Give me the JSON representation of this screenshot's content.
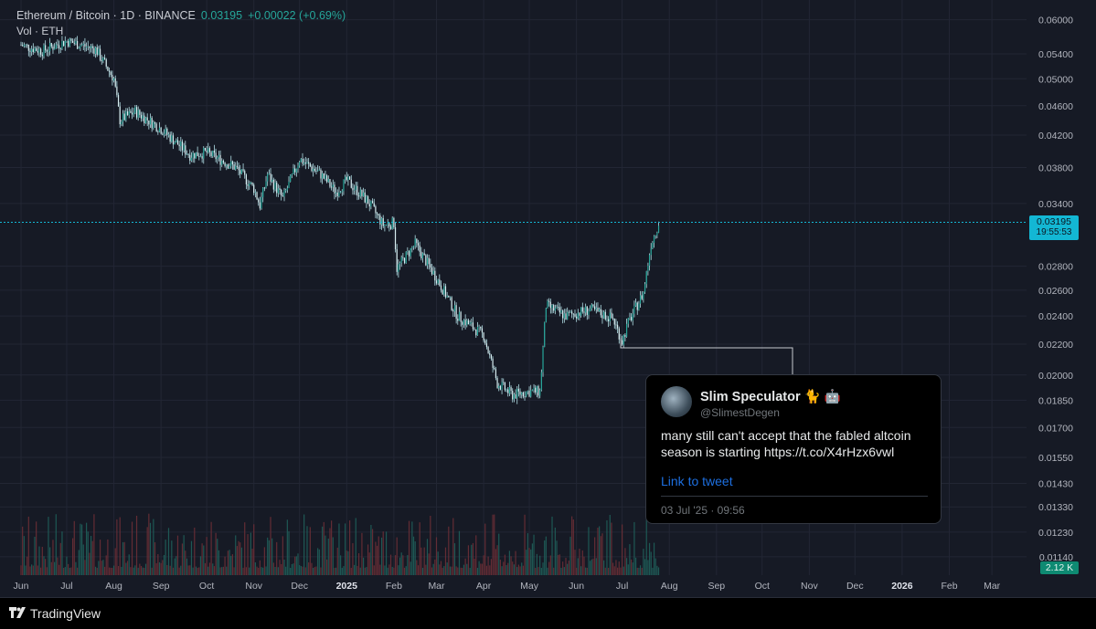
{
  "header": {
    "symbol": "Ethereum / Bitcoin · 1D · BINANCE",
    "price": "0.03195",
    "change": "+0.00022 (+0.69%)",
    "volume_label": "Vol · ETH"
  },
  "price_tag": {
    "price": "0.03195",
    "countdown": "19:55:53"
  },
  "volume_tag": "2.12 K",
  "footer": {
    "brand": "TradingView"
  },
  "tweet": {
    "name": "Slim Speculator 🐈 🤖",
    "handle": "@SlimestDegen",
    "text": "many still can't accept that the fabled altcoin season is starting https://t.co/X4rHzx6vwl",
    "link": "Link to tweet",
    "date": "03 Jul '25 · 09:56"
  },
  "colors": {
    "background": "#161a25",
    "up": "#26a69a",
    "candle": "#b2dfe6",
    "down": "#ef5350",
    "price_line": "#13b7d4"
  },
  "chart_data": {
    "type": "line",
    "title": "Ethereum / Bitcoin · 1D · BINANCE",
    "y_scale": "log",
    "y_ticks": [
      "0.06000",
      "0.05400",
      "0.05000",
      "0.04600",
      "0.04200",
      "0.03800",
      "0.03400",
      "0.02800",
      "0.02600",
      "0.02400",
      "0.02200",
      "0.02000",
      "0.01850",
      "0.01700",
      "0.01550",
      "0.01430",
      "0.01330",
      "0.01230",
      "0.01140"
    ],
    "x_ticks": [
      "Jun",
      "Jul",
      "Aug",
      "Sep",
      "Oct",
      "Nov",
      "Dec",
      "2025",
      "Feb",
      "Mar",
      "Apr",
      "May",
      "Jun",
      "Jul",
      "Aug",
      "Sep",
      "Oct",
      "Nov",
      "Dec",
      "2026",
      "Feb",
      "Mar"
    ],
    "bold_x_ticks": [
      "2025",
      "2026"
    ],
    "series": [
      {
        "x": [
          "2024-06-01",
          "2024-06-15",
          "2024-07-01",
          "2024-07-20",
          "2024-08-01",
          "2024-08-05",
          "2024-08-15",
          "2024-09-01",
          "2024-09-20",
          "2024-10-01",
          "2024-10-20",
          "2024-11-01",
          "2024-11-05",
          "2024-11-10",
          "2024-11-20",
          "2024-12-01",
          "2024-12-15",
          "2024-12-25",
          "2025-01-01",
          "2025-01-15",
          "2025-01-25",
          "2025-02-01",
          "2025-02-03",
          "2025-02-15",
          "2025-03-01",
          "2025-03-15",
          "2025-04-01",
          "2025-04-10",
          "2025-04-20",
          "2025-04-30",
          "2025-05-08",
          "2025-05-12",
          "2025-05-25",
          "2025-06-10",
          "2025-06-25",
          "2025-07-01",
          "2025-07-05",
          "2025-07-15",
          "2025-07-20",
          "2025-07-25"
        ],
        "y": [
          0.0555,
          0.0545,
          0.0562,
          0.0548,
          0.05,
          0.044,
          0.0452,
          0.0428,
          0.0395,
          0.0398,
          0.038,
          0.0356,
          0.0338,
          0.0372,
          0.0345,
          0.039,
          0.0372,
          0.0352,
          0.0365,
          0.0342,
          0.0318,
          0.032,
          0.0278,
          0.03,
          0.027,
          0.024,
          0.0226,
          0.0195,
          0.0188,
          0.019,
          0.019,
          0.0248,
          0.024,
          0.0245,
          0.0238,
          0.0222,
          0.0235,
          0.0258,
          0.03,
          0.032
        ]
      }
    ],
    "annotations": [
      "0.03195",
      "19:55:53",
      "2.12 K"
    ]
  }
}
